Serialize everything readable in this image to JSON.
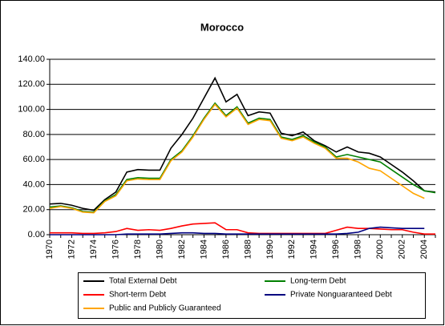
{
  "chart_data": {
    "type": "line",
    "title": "Morocco",
    "categories": [
      "1970",
      null,
      "1972",
      null,
      "1974",
      null,
      "1976",
      null,
      "1978",
      null,
      "1980",
      null,
      "1982",
      null,
      "1984",
      null,
      "1986",
      null,
      "1988",
      null,
      "1990",
      null,
      "1992",
      null,
      "1994",
      null,
      "1996",
      null,
      "1998",
      null,
      "2000",
      null,
      "2002",
      null,
      "2004",
      null
    ],
    "series": [
      {
        "name": "Total External Debt",
        "color": "#000000",
        "values": [
          24.5,
          25,
          23.5,
          21,
          19.5,
          28,
          34,
          50,
          52,
          51.5,
          51.5,
          69,
          80,
          93,
          109,
          125,
          106,
          112,
          95,
          98,
          97,
          81,
          79,
          82,
          75,
          71,
          66,
          70,
          66,
          65,
          62,
          56,
          50,
          43,
          35,
          34
        ]
      },
      {
        "name": "Long-term Debt",
        "color": "#008000",
        "values": [
          22,
          23,
          21.5,
          18.5,
          18,
          27,
          32,
          44,
          45.5,
          45,
          45,
          60,
          67,
          79,
          93,
          105,
          95,
          102,
          89,
          93,
          92,
          78,
          76,
          79,
          74,
          70,
          62,
          64,
          62,
          60,
          58,
          52,
          46,
          40,
          35,
          33.5
        ]
      },
      {
        "name": "Short-term Debt",
        "color": "#ff0000",
        "values": [
          1.5,
          1.5,
          1.5,
          1,
          1,
          1.5,
          2.5,
          5,
          3.5,
          4,
          3.5,
          5,
          7,
          8.5,
          9,
          9.5,
          4,
          4,
          1.5,
          1,
          1,
          1,
          1,
          1,
          1,
          1,
          3.5,
          6,
          5,
          5,
          4.5,
          4,
          4,
          2,
          0.5,
          0.5
        ]
      },
      {
        "name": "Private Nonguaranteed Debt",
        "color": "#000080",
        "values": [
          0,
          0,
          0,
          0,
          0,
          0,
          0,
          0.5,
          0.5,
          0.5,
          0.5,
          1,
          1.5,
          1.5,
          1,
          1,
          0.5,
          0.5,
          0.5,
          0.5,
          0.5,
          0.5,
          0.5,
          0.5,
          0.5,
          0.5,
          0.5,
          1,
          2,
          5,
          6,
          5.5,
          5,
          5,
          5,
          null
        ]
      },
      {
        "name": "Public and Publicly Guaranteed",
        "color": "#ffa500",
        "values": [
          21,
          22.5,
          21,
          18,
          17.5,
          26.5,
          31,
          43,
          44.5,
          44,
          44,
          59,
          66,
          78,
          92,
          104,
          94,
          101,
          88,
          92,
          91,
          77,
          75,
          78,
          73,
          69,
          61,
          61,
          58,
          53,
          51,
          45,
          39,
          33,
          29,
          null
        ]
      }
    ],
    "ylim": [
      0,
      140
    ],
    "yticks": [
      {
        "value": 0,
        "label": "0.00"
      },
      {
        "value": 20,
        "label": "20.00"
      },
      {
        "value": 40,
        "label": "40.00"
      },
      {
        "value": 60,
        "label": "60.00"
      },
      {
        "value": 80,
        "label": "80.00"
      },
      {
        "value": 100,
        "label": "100.00"
      },
      {
        "value": 120,
        "label": "120.00"
      },
      {
        "value": 140,
        "label": "140.00"
      }
    ],
    "grid": true
  }
}
